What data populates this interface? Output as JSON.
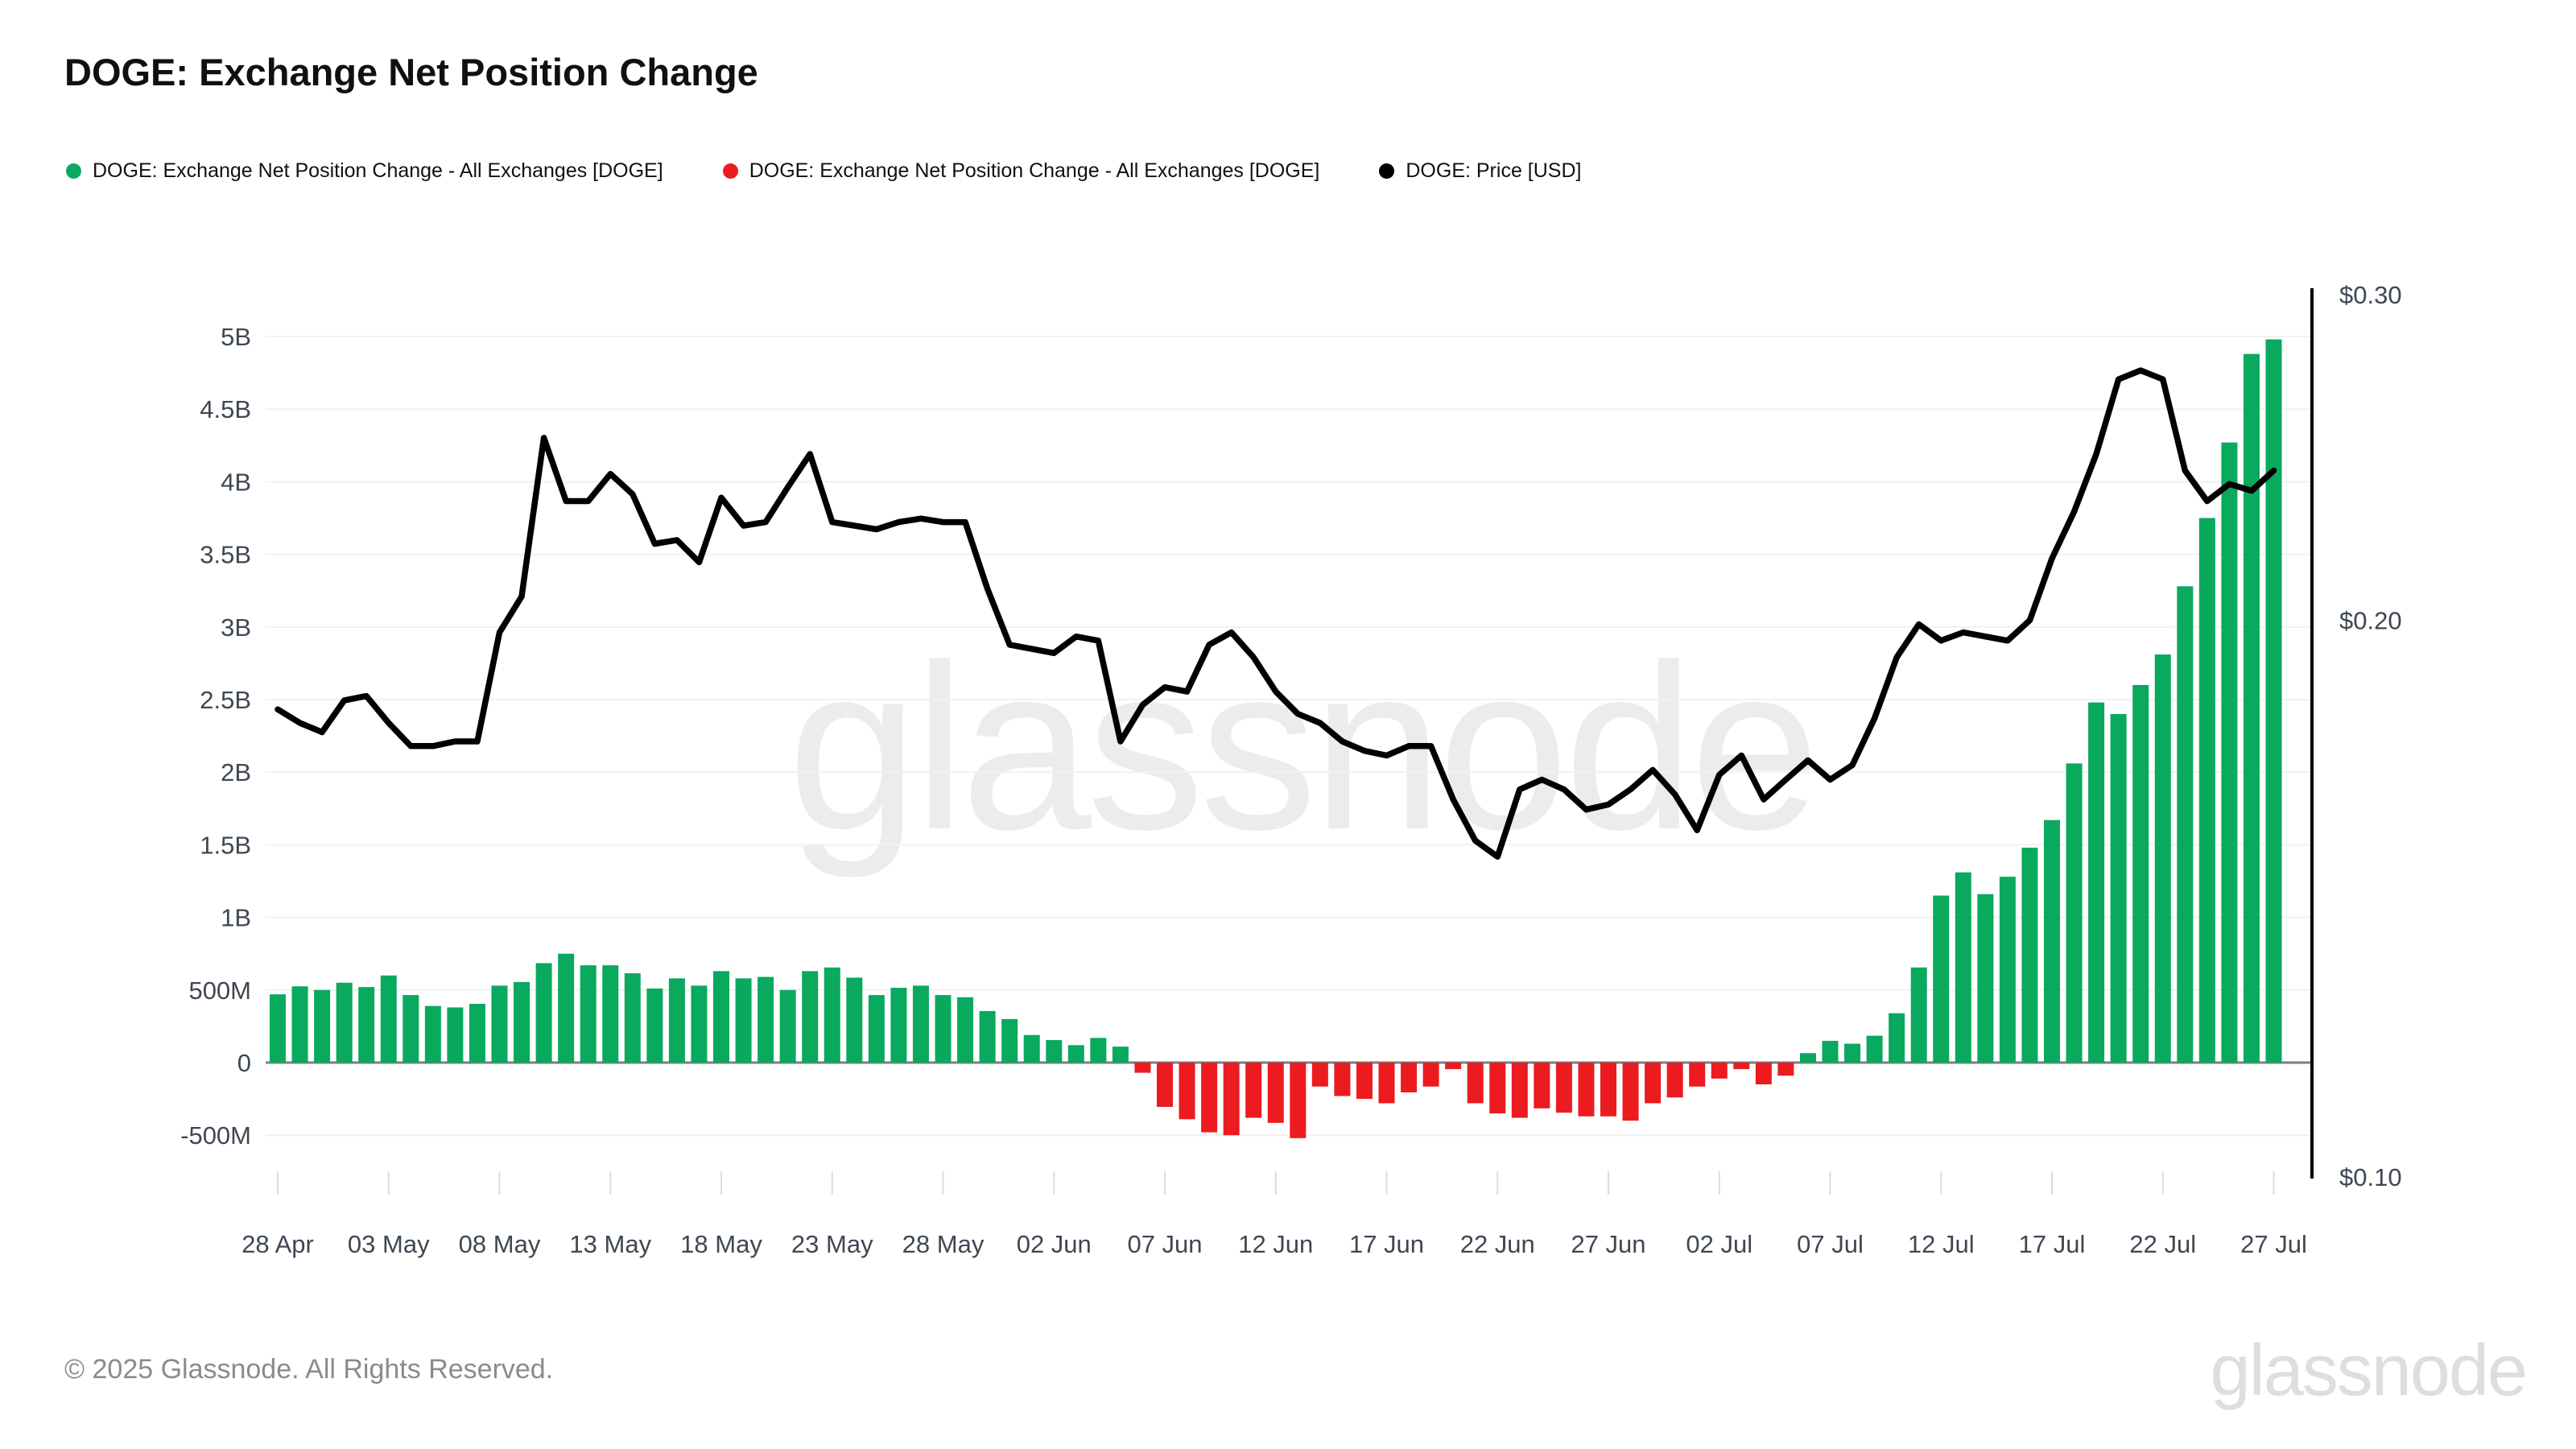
{
  "title": "DOGE: Exchange Net Position Change",
  "legend": [
    {
      "label": "DOGE: Exchange Net Position Change - All Exchanges [DOGE]",
      "color": "#09a95e"
    },
    {
      "label": "DOGE: Exchange Net Position Change - All Exchanges [DOGE]",
      "color": "#ec1b1f"
    },
    {
      "label": "DOGE: Price [USD]",
      "color": "#000000"
    }
  ],
  "watermark": "glassnode",
  "footer": {
    "copyright": "© 2025 Glassnode. All Rights Reserved.",
    "brand": "glassnode"
  },
  "chart_data": {
    "type": "bar",
    "title": "DOGE: Exchange Net Position Change",
    "grid": "horizontal",
    "x": [
      "28 Apr",
      "29 Apr",
      "30 Apr",
      "01 May",
      "02 May",
      "03 May",
      "04 May",
      "05 May",
      "06 May",
      "07 May",
      "08 May",
      "09 May",
      "10 May",
      "11 May",
      "12 May",
      "13 May",
      "14 May",
      "15 May",
      "16 May",
      "17 May",
      "18 May",
      "19 May",
      "20 May",
      "21 May",
      "22 May",
      "23 May",
      "24 May",
      "25 May",
      "26 May",
      "27 May",
      "28 May",
      "29 May",
      "30 May",
      "31 May",
      "01 Jun",
      "02 Jun",
      "03 Jun",
      "04 Jun",
      "05 Jun",
      "06 Jun",
      "07 Jun",
      "08 Jun",
      "09 Jun",
      "10 Jun",
      "11 Jun",
      "12 Jun",
      "13 Jun",
      "14 Jun",
      "15 Jun",
      "16 Jun",
      "17 Jun",
      "18 Jun",
      "19 Jun",
      "20 Jun",
      "21 Jun",
      "22 Jun",
      "23 Jun",
      "24 Jun",
      "25 Jun",
      "26 Jun",
      "27 Jun",
      "28 Jun",
      "29 Jun",
      "30 Jun",
      "01 Jul",
      "02 Jul",
      "03 Jul",
      "04 Jul",
      "05 Jul",
      "06 Jul",
      "07 Jul",
      "08 Jul",
      "09 Jul",
      "10 Jul",
      "11 Jul",
      "12 Jul",
      "13 Jul",
      "14 Jul",
      "15 Jul",
      "16 Jul",
      "17 Jul",
      "18 Jul",
      "19 Jul",
      "20 Jul",
      "21 Jul",
      "22 Jul",
      "23 Jul",
      "24 Jul",
      "25 Jul",
      "26 Jul",
      "27 Jul"
    ],
    "series": [
      {
        "name": "DOGE: Exchange Net Position Change - All Exchanges [DOGE]",
        "type": "bar",
        "unit": "DOGE",
        "color_positive": "#09a95e",
        "color_negative": "#ec1b1f",
        "values_millions": [
          470,
          525,
          500,
          550,
          520,
          600,
          465,
          390,
          380,
          405,
          530,
          555,
          685,
          750,
          670,
          670,
          615,
          510,
          580,
          530,
          630,
          580,
          590,
          500,
          630,
          655,
          585,
          465,
          515,
          530,
          465,
          450,
          355,
          300,
          190,
          155,
          120,
          170,
          110,
          -70,
          -305,
          -390,
          -480,
          -500,
          -380,
          -415,
          -520,
          -165,
          -230,
          -250,
          -280,
          -205,
          -165,
          -45,
          -280,
          -350,
          -380,
          -315,
          -345,
          -370,
          -370,
          -400,
          -280,
          -240,
          -165,
          -110,
          -45,
          -150,
          -90,
          65,
          150,
          130,
          185,
          340,
          655,
          1150,
          1310,
          1160,
          1280,
          1480,
          1670,
          2060,
          2480,
          2400,
          2600,
          2810,
          3280,
          3750,
          4270,
          4880,
          4980
        ]
      },
      {
        "name": "DOGE: Price [USD]",
        "type": "line",
        "axis": "right",
        "color": "#000000",
        "values_usd": [
          0.179,
          0.176,
          0.174,
          0.181,
          0.182,
          0.176,
          0.171,
          0.171,
          0.172,
          0.172,
          0.197,
          0.206,
          0.251,
          0.232,
          0.232,
          0.24,
          0.234,
          0.22,
          0.221,
          0.215,
          0.233,
          0.225,
          0.226,
          0.236,
          0.246,
          0.226,
          0.225,
          0.224,
          0.226,
          0.227,
          0.226,
          0.226,
          0.208,
          0.194,
          0.193,
          0.192,
          0.196,
          0.195,
          0.172,
          0.18,
          0.184,
          0.183,
          0.194,
          0.197,
          0.191,
          0.183,
          0.178,
          0.176,
          0.172,
          0.17,
          0.169,
          0.171,
          0.171,
          0.16,
          0.152,
          0.149,
          0.162,
          0.164,
          0.162,
          0.158,
          0.159,
          0.162,
          0.166,
          0.161,
          0.154,
          0.165,
          0.169,
          0.16,
          0.164,
          0.168,
          0.164,
          0.167,
          0.177,
          0.191,
          0.199,
          0.195,
          0.197,
          0.196,
          0.195,
          0.2,
          0.216,
          0.229,
          0.246,
          0.27,
          0.273,
          0.27,
          0.241,
          0.232,
          0.237,
          0.235,
          0.241
        ]
      }
    ],
    "left_axis": {
      "ticks": [
        "5B",
        "4.5B",
        "4B",
        "3.5B",
        "3B",
        "2.5B",
        "2B",
        "1.5B",
        "1B",
        "500M",
        "0",
        "-500M"
      ],
      "tick_values_millions": [
        5000,
        4500,
        4000,
        3500,
        3000,
        2500,
        2000,
        1500,
        1000,
        500,
        0,
        -500
      ],
      "range_millions": [
        -700,
        5400
      ]
    },
    "right_axis": {
      "ticks": [
        "$0.30",
        "$0.20",
        "$0.10"
      ],
      "tick_values": [
        0.3,
        0.2,
        0.1
      ],
      "scale": "log"
    },
    "x_axis": {
      "tick_labels": [
        "28 Apr",
        "03 May",
        "08 May",
        "13 May",
        "18 May",
        "23 May",
        "28 May",
        "02 Jun",
        "07 Jun",
        "12 Jun",
        "17 Jun",
        "22 Jun",
        "27 Jun",
        "02 Jul",
        "07 Jul",
        "12 Jul",
        "17 Jul",
        "22 Jul",
        "27 Jul"
      ],
      "tick_day_indices": [
        0,
        5,
        10,
        15,
        20,
        25,
        30,
        35,
        40,
        45,
        50,
        55,
        60,
        65,
        70,
        75,
        80,
        85,
        90
      ]
    },
    "colors": {
      "grid": "#f1f1f1",
      "zero_line": "#7d7d7d",
      "axis_text": "#3f4753",
      "price_axis_line": "#000000"
    }
  }
}
